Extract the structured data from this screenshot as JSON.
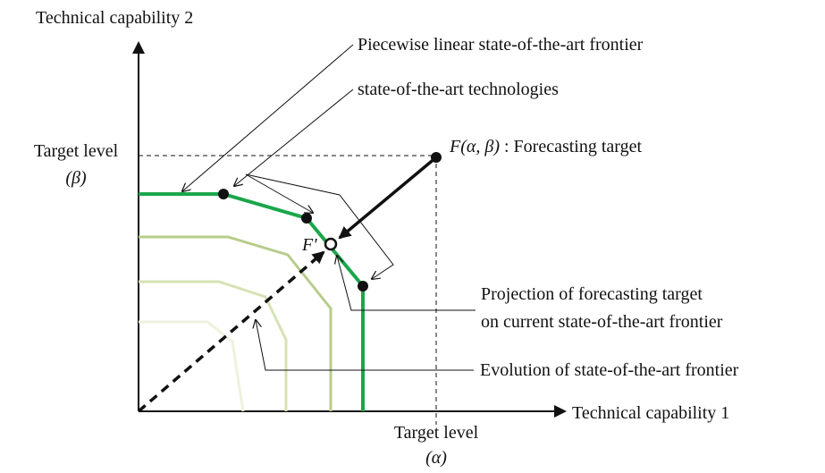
{
  "axes": {
    "y_label": "Technical capability 2",
    "x_label": "Technical capability 1",
    "y_target": {
      "label": "Target level",
      "symbol": "(β)"
    },
    "x_target": {
      "label": "Target level",
      "symbol": "(α)"
    }
  },
  "annotations": {
    "frontier": "Piecewise linear state-of-the-art frontier",
    "technologies": "state-of-the-art technologies",
    "forecast_target": {
      "symbol": "F(α, β)",
      "text": " : Forecasting target"
    },
    "projection_point": "F'",
    "projection": [
      "Projection of forecasting target",
      "on current state-of-the-art frontier"
    ],
    "evolution": "Evolution of state-of-the-art frontier"
  }
}
